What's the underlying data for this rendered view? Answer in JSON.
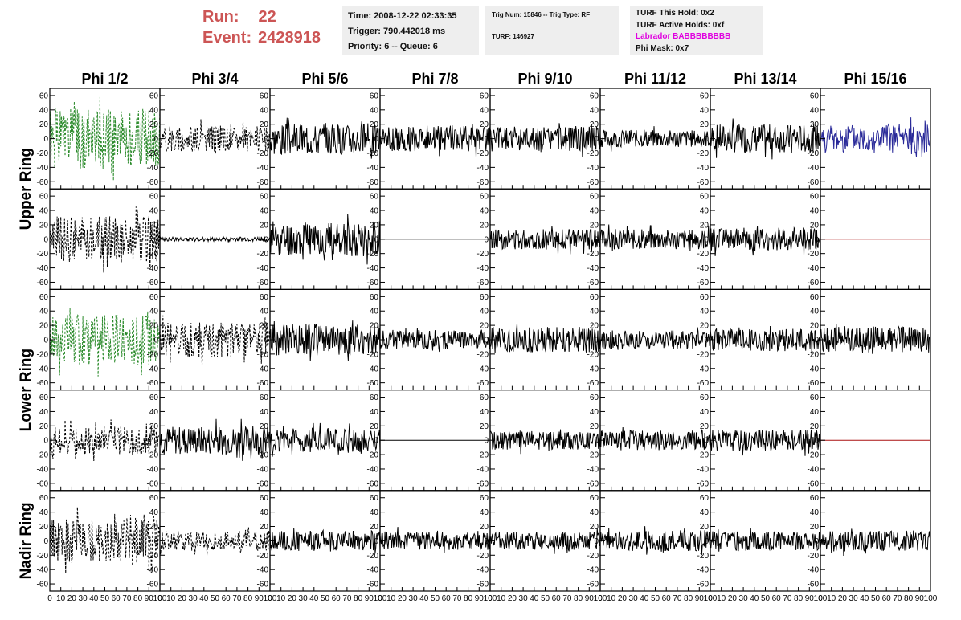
{
  "header": {
    "run_label": "Run:",
    "run_value": "22",
    "event_label": "Event:",
    "event_value": "2428918",
    "time": "Time: 2008-12-22 02:33:35",
    "trigger": "Trigger: 790.442018 ms",
    "priority": "Priority: 6 -- Queue: 6",
    "trig_num": "Trig Num: 15846 -- Trig Type: RF",
    "turf": "TURF: 146927",
    "turf_this_hold": "TURF This Hold: 0x2",
    "turf_active_holds": "TURF Active Holds: 0xf",
    "labrador": "Labrador BABBBBBBBB",
    "phi_mask": "Phi Mask: 0x7"
  },
  "chart_data": {
    "type": "line",
    "columns": [
      "Phi 1/2",
      "Phi 3/4",
      "Phi 5/6",
      "Phi 7/8",
      "Phi 9/10",
      "Phi 11/12",
      "Phi 13/14",
      "Phi 15/16"
    ],
    "ring_labels": [
      "Upper Ring",
      "Lower Ring",
      "Nadir Ring"
    ],
    "rows": 5,
    "ylim": [
      -70,
      70
    ],
    "yticks": [
      60,
      40,
      20,
      0,
      -20,
      -40,
      -60
    ],
    "xlim": [
      0,
      100
    ],
    "xticks": [
      0,
      10,
      20,
      30,
      40,
      50,
      60,
      70,
      80,
      90,
      100
    ],
    "colors": {
      "green": "#2a8a2a",
      "black": "#000000",
      "blue": "#2a2a99",
      "red": "#aa1111"
    },
    "panels": [
      [
        {
          "color": "green",
          "style": "dashed",
          "amp": 42,
          "seed": 1
        },
        {
          "color": "black",
          "style": "dashed",
          "amp": 18,
          "seed": 2
        },
        {
          "color": "black",
          "style": "solid",
          "amp": 22,
          "seed": 3
        },
        {
          "color": "black",
          "style": "solid",
          "amp": 18,
          "seed": 4
        },
        {
          "color": "black",
          "style": "solid",
          "amp": 17,
          "seed": 5
        },
        {
          "color": "black",
          "style": "solid",
          "amp": 12,
          "seed": 6
        },
        {
          "color": "black",
          "style": "solid",
          "amp": 20,
          "seed": 7
        },
        {
          "color": "blue",
          "style": "solid",
          "amp": 20,
          "seed": 8
        }
      ],
      [
        {
          "color": "black",
          "style": "dashed",
          "amp": 32,
          "seed": 9
        },
        {
          "color": "black",
          "style": "solid",
          "amp": 3,
          "seed": 10
        },
        {
          "color": "black",
          "style": "solid",
          "amp": 24,
          "seed": 11
        },
        {
          "color": "black",
          "style": "flat",
          "amp": 0,
          "seed": 12
        },
        {
          "color": "black",
          "style": "solid",
          "amp": 14,
          "seed": 13
        },
        {
          "color": "black",
          "style": "solid",
          "amp": 14,
          "seed": 14
        },
        {
          "color": "black",
          "style": "solid",
          "amp": 16,
          "seed": 15
        },
        {
          "color": "red",
          "style": "flat",
          "amp": 0,
          "seed": 16
        }
      ],
      [
        {
          "color": "green",
          "style": "dashed",
          "amp": 36,
          "seed": 17
        },
        {
          "color": "black",
          "style": "dashed",
          "amp": 25,
          "seed": 18
        },
        {
          "color": "black",
          "style": "solid",
          "amp": 22,
          "seed": 19
        },
        {
          "color": "black",
          "style": "solid",
          "amp": 13,
          "seed": 20
        },
        {
          "color": "black",
          "style": "solid",
          "amp": 18,
          "seed": 21
        },
        {
          "color": "black",
          "style": "solid",
          "amp": 13,
          "seed": 22
        },
        {
          "color": "black",
          "style": "solid",
          "amp": 16,
          "seed": 23
        },
        {
          "color": "black",
          "style": "solid",
          "amp": 18,
          "seed": 24
        }
      ],
      [
        {
          "color": "black",
          "style": "dashed",
          "amp": 20,
          "seed": 25
        },
        {
          "color": "black",
          "style": "solid",
          "amp": 20,
          "seed": 26
        },
        {
          "color": "black",
          "style": "solid",
          "amp": 17,
          "seed": 27
        },
        {
          "color": "black",
          "style": "flat",
          "amp": 0,
          "seed": 28
        },
        {
          "color": "black",
          "style": "solid",
          "amp": 13,
          "seed": 29
        },
        {
          "color": "black",
          "style": "solid",
          "amp": 14,
          "seed": 30
        },
        {
          "color": "black",
          "style": "solid",
          "amp": 15,
          "seed": 31
        },
        {
          "color": "red",
          "style": "flat",
          "amp": 0,
          "seed": 32
        }
      ],
      [
        {
          "color": "black",
          "style": "dashed",
          "amp": 32,
          "seed": 33
        },
        {
          "color": "black",
          "style": "dashed",
          "amp": 14,
          "seed": 34
        },
        {
          "color": "black",
          "style": "solid",
          "amp": 14,
          "seed": 35
        },
        {
          "color": "black",
          "style": "solid",
          "amp": 13,
          "seed": 36
        },
        {
          "color": "black",
          "style": "solid",
          "amp": 13,
          "seed": 37
        },
        {
          "color": "black",
          "style": "solid",
          "amp": 14,
          "seed": 38
        },
        {
          "color": "black",
          "style": "solid",
          "amp": 13,
          "seed": 39
        },
        {
          "color": "black",
          "style": "solid",
          "amp": 14,
          "seed": 40
        }
      ]
    ]
  }
}
